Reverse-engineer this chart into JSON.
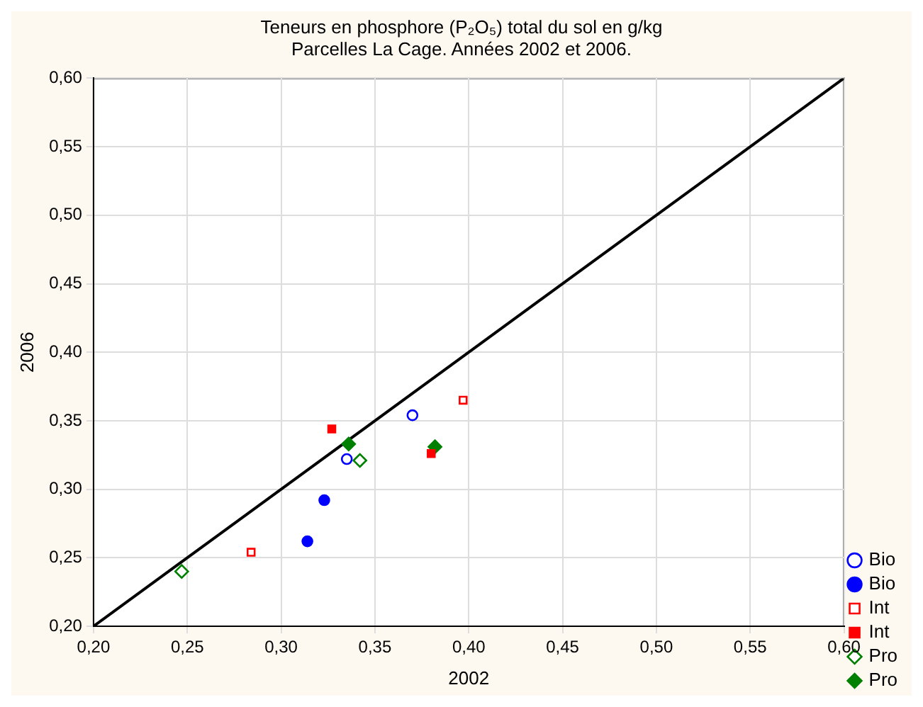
{
  "chart_data": {
    "type": "scatter",
    "title": "Teneurs en phosphore (P₂O₅) total du sol en g/kg",
    "subtitle": "Parcelles La Cage. Années 2002 et 2006.",
    "xlabel": "2002",
    "ylabel": "2006",
    "xlim": [
      0.2,
      0.6
    ],
    "ylim": [
      0.2,
      0.6
    ],
    "xticks": [
      {
        "value": 0.2,
        "label": "0,20"
      },
      {
        "value": 0.25,
        "label": "0,25"
      },
      {
        "value": 0.3,
        "label": "0,30"
      },
      {
        "value": 0.35,
        "label": "0,35"
      },
      {
        "value": 0.4,
        "label": "0,40"
      },
      {
        "value": 0.45,
        "label": "0,45"
      },
      {
        "value": 0.5,
        "label": "0,50"
      },
      {
        "value": 0.55,
        "label": "0,55"
      },
      {
        "value": 0.6,
        "label": "0,60"
      }
    ],
    "yticks": [
      {
        "value": 0.2,
        "label": "0,20"
      },
      {
        "value": 0.25,
        "label": "0,25"
      },
      {
        "value": 0.3,
        "label": "0,30"
      },
      {
        "value": 0.35,
        "label": "0,35"
      },
      {
        "value": 0.4,
        "label": "0,40"
      },
      {
        "value": 0.45,
        "label": "0,45"
      },
      {
        "value": 0.5,
        "label": "0,50"
      },
      {
        "value": 0.55,
        "label": "0,55"
      },
      {
        "value": 0.6,
        "label": "0,60"
      }
    ],
    "grid": true,
    "legend": "right",
    "series": [
      {
        "type": "line",
        "color": "#000000",
        "marker": "none",
        "x": [
          0.2,
          0.6
        ],
        "values": [
          0.2,
          0.6
        ]
      },
      {
        "name": "Bio",
        "color": "#0000ff",
        "marker": "circle",
        "x": [
          0.335,
          0.37
        ],
        "values": [
          0.322,
          0.354
        ]
      },
      {
        "name": "Bio",
        "color": "#0000ff",
        "marker": "circle",
        "x": [
          0.323,
          0.314
        ],
        "values": [
          0.292,
          0.262
        ]
      },
      {
        "name": "Int",
        "color": "#ff0000",
        "marker": "square",
        "x": [
          0.397,
          0.284
        ],
        "values": [
          0.365,
          0.254
        ]
      },
      {
        "name": "Int",
        "color": "#ff0000",
        "marker": "square",
        "x": [
          0.327,
          0.38
        ],
        "values": [
          0.344,
          0.326
        ]
      },
      {
        "name": "Pro",
        "color": "#008000",
        "marker": "diamond",
        "x": [
          0.342,
          0.247
        ],
        "values": [
          0.321,
          0.24
        ]
      },
      {
        "name": "Pro",
        "color": "#008000",
        "marker": "diamond",
        "x": [
          0.336,
          0.382
        ],
        "values": [
          0.333,
          0.331
        ]
      }
    ]
  }
}
